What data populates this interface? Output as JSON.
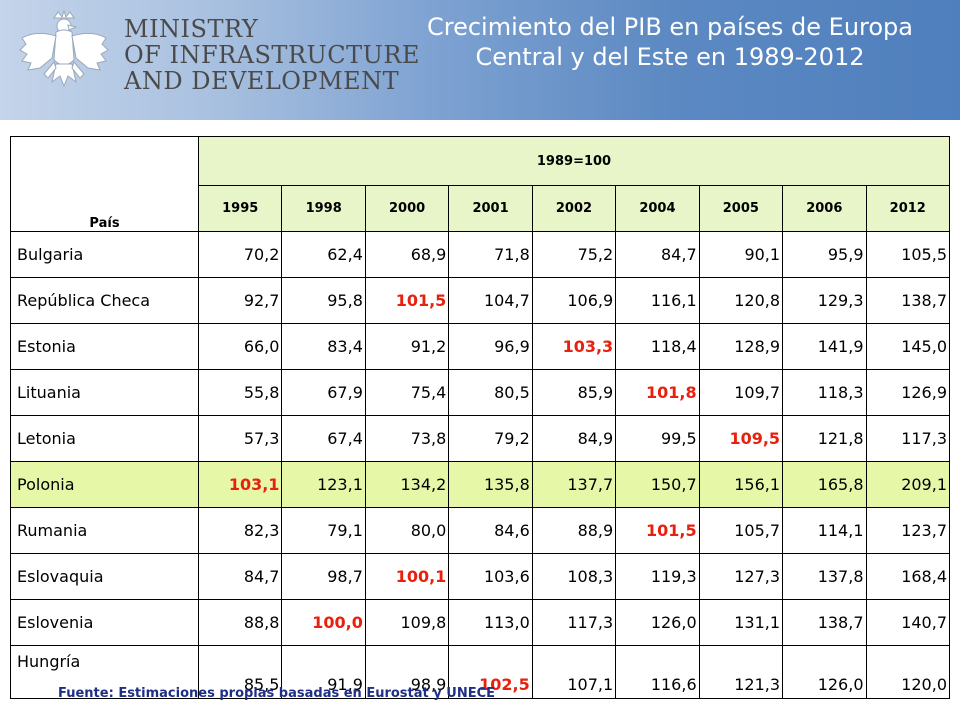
{
  "header": {
    "ministry_lines": [
      "MINISTRY",
      "OF INFRASTRUCTURE",
      "AND DEVELOPMENT"
    ],
    "title_lines": [
      "Crecimiento del PIB en países de  Europa",
      "Central y del Este en 1989-2012"
    ],
    "logo_icon": "eagle-emblem-icon",
    "colors": {
      "band_start": "#c4d4ea",
      "band_end": "#4f7fbd",
      "title_text": "#ffffff"
    }
  },
  "table": {
    "country_header": "País",
    "base_header": "1989=100",
    "years": [
      "1995",
      "1998",
      "2000",
      "2001",
      "2002",
      "2004",
      "2005",
      "2006",
      "2012"
    ],
    "rows": [
      {
        "country": "Bulgaria",
        "values": [
          "70,2",
          "62,4",
          "68,9",
          "71,8",
          "75,2",
          "84,7",
          "90,1",
          "95,9",
          "105,5"
        ],
        "highlight_index": -1
      },
      {
        "country": "República Checa",
        "values": [
          "92,7",
          "95,8",
          "101,5",
          "104,7",
          "106,9",
          "116,1",
          "120,8",
          "129,3",
          "138,7"
        ],
        "highlight_index": 2
      },
      {
        "country": "Estonia",
        "values": [
          "66,0",
          "83,4",
          "91,2",
          "96,9",
          "103,3",
          "118,4",
          "128,9",
          "141,9",
          "145,0"
        ],
        "highlight_index": 4
      },
      {
        "country": "Lituania",
        "values": [
          "55,8",
          "67,9",
          "75,4",
          "80,5",
          "85,9",
          "101,8",
          "109,7",
          "118,3",
          "126,9"
        ],
        "highlight_index": 5
      },
      {
        "country": "Letonia",
        "values": [
          "57,3",
          "67,4",
          "73,8",
          "79,2",
          "84,9",
          "99,5",
          "109,5",
          "121,8",
          "117,3"
        ],
        "highlight_index": 6
      },
      {
        "country": "Polonia",
        "values": [
          "103,1",
          "123,1",
          "134,2",
          "135,8",
          "137,7",
          "150,7",
          "156,1",
          "165,8",
          "209,1"
        ],
        "highlight_index": 0
      },
      {
        "country": "Rumania",
        "values": [
          "82,3",
          "79,1",
          "80,0",
          "84,6",
          "88,9",
          "101,5",
          "105,7",
          "114,1",
          "123,7"
        ],
        "highlight_index": 5
      },
      {
        "country": "Eslovaquia",
        "values": [
          "84,7",
          "98,7",
          "100,1",
          "103,6",
          "108,3",
          "119,3",
          "127,3",
          "137,8",
          "168,4"
        ],
        "highlight_index": 2
      },
      {
        "country": "Eslovenia",
        "values": [
          "88,8",
          "100,0",
          "109,8",
          "113,0",
          "117,3",
          "126,0",
          "131,1",
          "138,7",
          "140,7"
        ],
        "highlight_index": 1
      },
      {
        "country": "Hungría",
        "values": [
          "85,5",
          "91,9",
          "98,9",
          "102,5",
          "107,1",
          "116,6",
          "121,3",
          "126,0",
          "120,0"
        ],
        "highlight_index": 3
      }
    ],
    "colors": {
      "header_bg": "#e7f5c8",
      "poland_bg": "#e6f8a8",
      "highlight_text": "#e8210f"
    }
  },
  "footer": {
    "source": "Fuente: Estimaciones propias basadas en Eurostat y UNECE"
  }
}
